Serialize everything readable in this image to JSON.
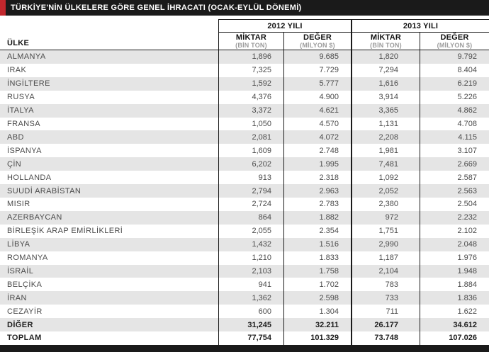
{
  "title": "TÜRKİYE'NİN ÜLKELERE GÖRE GENEL İHRACATI (OCAK-EYLÜL DÖNEMİ)",
  "colors": {
    "accent_red": "#c2272d",
    "bar_black": "#1a1a1a",
    "stripe_gray": "#e5e5e5"
  },
  "table": {
    "country_header": "ÜLKE",
    "year_groups": [
      {
        "label": "2012 YILI"
      },
      {
        "label": "2013 YILI"
      }
    ],
    "sub_headers": {
      "amount_label": "MİKTAR",
      "amount_unit": "(BİN TON)",
      "value_label": "DEĞER",
      "value_unit": "(MİLYON $)"
    },
    "rows": [
      {
        "country": "ALMANYA",
        "m2012": "1,896",
        "d2012": "9.685",
        "m2013": "1,820",
        "d2013": "9.792",
        "bold": false
      },
      {
        "country": "IRAK",
        "m2012": "7,325",
        "d2012": "7.729",
        "m2013": "7,294",
        "d2013": "8.404",
        "bold": false
      },
      {
        "country": "İNGİLTERE",
        "m2012": "1,592",
        "d2012": "5.777",
        "m2013": "1,616",
        "d2013": "6.219",
        "bold": false
      },
      {
        "country": "RUSYA",
        "m2012": "4,376",
        "d2012": "4.900",
        "m2013": "3,914",
        "d2013": "5.226",
        "bold": false
      },
      {
        "country": "İTALYA",
        "m2012": "3,372",
        "d2012": "4.621",
        "m2013": "3,365",
        "d2013": "4.862",
        "bold": false
      },
      {
        "country": "FRANSA",
        "m2012": "1,050",
        "d2012": "4.570",
        "m2013": "1,131",
        "d2013": "4.708",
        "bold": false
      },
      {
        "country": "ABD",
        "m2012": "2,081",
        "d2012": "4.072",
        "m2013": "2,208",
        "d2013": "4.115",
        "bold": false
      },
      {
        "country": "İSPANYA",
        "m2012": "1,609",
        "d2012": "2.748",
        "m2013": "1,981",
        "d2013": "3.107",
        "bold": false
      },
      {
        "country": "ÇİN",
        "m2012": "6,202",
        "d2012": "1.995",
        "m2013": "7,481",
        "d2013": "2.669",
        "bold": false
      },
      {
        "country": "HOLLANDA",
        "m2012": "913",
        "d2012": "2.318",
        "m2013": "1,092",
        "d2013": "2.587",
        "bold": false
      },
      {
        "country": "SUUDİ ARABİSTAN",
        "m2012": "2,794",
        "d2012": "2.963",
        "m2013": "2,052",
        "d2013": "2.563",
        "bold": false
      },
      {
        "country": "MISIR",
        "m2012": "2,724",
        "d2012": "2.783",
        "m2013": "2,380",
        "d2013": "2.504",
        "bold": false
      },
      {
        "country": "AZERBAYCAN",
        "m2012": "864",
        "d2012": "1.882",
        "m2013": "972",
        "d2013": "2.232",
        "bold": false
      },
      {
        "country": "BİRLEŞİK ARAP EMİRLİKLERİ",
        "m2012": "2,055",
        "d2012": "2.354",
        "m2013": "1,751",
        "d2013": "2.102",
        "bold": false
      },
      {
        "country": "LİBYA",
        "m2012": "1,432",
        "d2012": "1.516",
        "m2013": "2,990",
        "d2013": "2.048",
        "bold": false
      },
      {
        "country": "ROMANYA",
        "m2012": "1,210",
        "d2012": "1.833",
        "m2013": "1,187",
        "d2013": "1.976",
        "bold": false
      },
      {
        "country": "İSRAİL",
        "m2012": "2,103",
        "d2012": "1.758",
        "m2013": "2,104",
        "d2013": "1.948",
        "bold": false
      },
      {
        "country": "BELÇİKA",
        "m2012": "941",
        "d2012": "1.702",
        "m2013": "783",
        "d2013": "1.884",
        "bold": false
      },
      {
        "country": "İRAN",
        "m2012": "1,362",
        "d2012": "2.598",
        "m2013": "733",
        "d2013": "1.836",
        "bold": false
      },
      {
        "country": "CEZAYİR",
        "m2012": "600",
        "d2012": "1.304",
        "m2013": "711",
        "d2013": "1.622",
        "bold": false
      },
      {
        "country": "DİĞER",
        "m2012": "31,245",
        "d2012": "32.211",
        "m2013": "26.177",
        "d2013": "34.612",
        "bold": true
      },
      {
        "country": "TOPLAM",
        "m2012": "77,754",
        "d2012": "101.329",
        "m2013": "73.748",
        "d2013": "107.026",
        "bold": true
      }
    ]
  },
  "chart_data": {
    "type": "table",
    "title": "TÜRKİYE'NİN ÜLKELERE GÖRE GENEL İHRACATI (OCAK-EYLÜL DÖNEMİ)",
    "categories": [
      "ALMANYA",
      "IRAK",
      "İNGİLTERE",
      "RUSYA",
      "İTALYA",
      "FRANSA",
      "ABD",
      "İSPANYA",
      "ÇİN",
      "HOLLANDA",
      "SUUDİ ARABİSTAN",
      "MISIR",
      "AZERBAYCAN",
      "BİRLEŞİK ARAP EMİRLİKLERİ",
      "LİBYA",
      "ROMANYA",
      "İSRAİL",
      "BELÇİKA",
      "İRAN",
      "CEZAYİR",
      "DİĞER",
      "TOPLAM"
    ],
    "series": [
      {
        "name": "2012 YILI MİKTAR (BİN TON)",
        "values": [
          1896,
          7325,
          1592,
          4376,
          3372,
          1050,
          2081,
          1609,
          6202,
          913,
          2794,
          2724,
          864,
          2055,
          1432,
          1210,
          2103,
          941,
          1362,
          600,
          31245,
          77754
        ]
      },
      {
        "name": "2012 YILI DEĞER (MİLYON $)",
        "values": [
          9685,
          7729,
          5777,
          4900,
          4621,
          4570,
          4072,
          2748,
          1995,
          2318,
          2963,
          2783,
          1882,
          2354,
          1516,
          1833,
          1758,
          1702,
          2598,
          1304,
          32211,
          101329
        ]
      },
      {
        "name": "2013 YILI MİKTAR (BİN TON)",
        "values": [
          1820,
          7294,
          1616,
          3914,
          3365,
          1131,
          2208,
          1981,
          7481,
          1092,
          2052,
          2380,
          972,
          1751,
          2990,
          1187,
          2104,
          783,
          733,
          711,
          26177,
          73748
        ]
      },
      {
        "name": "2013 YILI DEĞER (MİLYON $)",
        "values": [
          9792,
          8404,
          6219,
          5226,
          4862,
          4708,
          4115,
          3107,
          2669,
          2587,
          2563,
          2504,
          2232,
          2102,
          2048,
          1976,
          1948,
          1884,
          1836,
          1622,
          34612,
          107026
        ]
      }
    ]
  }
}
